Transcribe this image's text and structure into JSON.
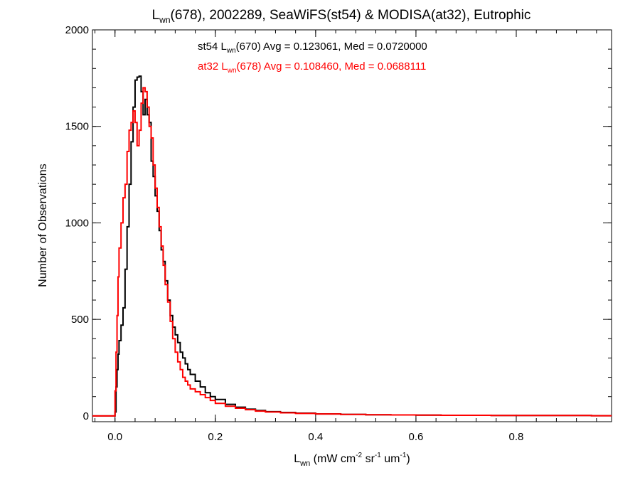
{
  "chart_data": {
    "type": "line",
    "title": {
      "pre": "L",
      "sub": "wn",
      "post": "(678), 2002289, SeaWiFS(st54) & MODISA(at32), Eutrophic"
    },
    "ylabel": "Number of Observations",
    "xlabel": {
      "p1": "L",
      "p1_sub": "wn",
      "p2": " (mW cm",
      "p2_sup": "-2",
      "p3": " sr",
      "p3_sup": "-1",
      "p4": " um",
      "p4_sup": "-1",
      "p5": ")"
    },
    "xlim": [
      -0.045,
      0.99
    ],
    "ylim": [
      -30,
      2000
    ],
    "x_ticks": [
      0.0,
      0.2,
      0.4,
      0.6,
      0.8
    ],
    "x_tick_labels": [
      "0.0",
      "0.2",
      "0.4",
      "0.6",
      "0.8"
    ],
    "y_ticks": [
      0,
      500,
      1000,
      1500,
      2000
    ],
    "y_tick_labels": [
      "0",
      "500",
      "1000",
      "1500",
      "2000"
    ],
    "x_minor_step": 0.04,
    "y_minor_step": 100,
    "grid": false,
    "legend": [
      {
        "color": "#000000",
        "pre": "st54 L",
        "sub": "wn",
        "post": "(670) Avg = 0.123061, Med = 0.0720000"
      },
      {
        "color": "#ff0000",
        "pre": "at32 L",
        "sub": "wn",
        "post": "(678) Avg = 0.108460, Med = 0.0688111"
      }
    ],
    "series": [
      {
        "color": "#000000",
        "step": true,
        "x": [
          -0.05,
          0.0,
          0.002,
          0.004,
          0.006,
          0.008,
          0.012,
          0.016,
          0.02,
          0.024,
          0.028,
          0.032,
          0.036,
          0.04,
          0.044,
          0.048,
          0.052,
          0.056,
          0.06,
          0.064,
          0.068,
          0.072,
          0.076,
          0.08,
          0.084,
          0.088,
          0.092,
          0.096,
          0.1,
          0.105,
          0.11,
          0.115,
          0.12,
          0.125,
          0.13,
          0.135,
          0.14,
          0.145,
          0.15,
          0.16,
          0.17,
          0.18,
          0.19,
          0.2,
          0.22,
          0.24,
          0.26,
          0.28,
          0.3,
          0.33,
          0.36,
          0.4,
          0.45,
          0.5,
          0.55,
          0.6,
          0.65,
          0.7,
          0.75,
          0.8,
          0.85,
          0.9,
          0.95,
          0.99
        ],
        "y": [
          0,
          20,
          150,
          240,
          320,
          390,
          470,
          560,
          760,
          980,
          1200,
          1420,
          1600,
          1740,
          1755,
          1760,
          1680,
          1560,
          1640,
          1560,
          1520,
          1320,
          1240,
          1140,
          1060,
          960,
          860,
          800,
          700,
          600,
          520,
          460,
          420,
          380,
          330,
          300,
          270,
          240,
          215,
          180,
          150,
          120,
          100,
          85,
          60,
          45,
          35,
          28,
          22,
          18,
          14,
          10,
          8,
          6,
          5,
          4,
          3,
          3,
          2,
          2,
          2,
          2,
          1,
          1
        ]
      },
      {
        "color": "#ff0000",
        "step": true,
        "x": [
          -0.05,
          0.0,
          0.002,
          0.004,
          0.006,
          0.008,
          0.012,
          0.016,
          0.02,
          0.024,
          0.028,
          0.032,
          0.036,
          0.04,
          0.044,
          0.048,
          0.052,
          0.056,
          0.06,
          0.064,
          0.068,
          0.072,
          0.076,
          0.08,
          0.084,
          0.088,
          0.092,
          0.096,
          0.1,
          0.105,
          0.11,
          0.115,
          0.12,
          0.125,
          0.13,
          0.135,
          0.14,
          0.145,
          0.15,
          0.16,
          0.17,
          0.18,
          0.19,
          0.2,
          0.22,
          0.24,
          0.26,
          0.28,
          0.3,
          0.33,
          0.36,
          0.4,
          0.45,
          0.5,
          0.55,
          0.6,
          0.65,
          0.7,
          0.75,
          0.8,
          0.85,
          0.9,
          0.95,
          0.99
        ],
        "y": [
          0,
          130,
          330,
          520,
          720,
          870,
          1000,
          1130,
          1200,
          1370,
          1480,
          1520,
          1580,
          1520,
          1400,
          1480,
          1620,
          1700,
          1680,
          1600,
          1500,
          1440,
          1300,
          1180,
          1080,
          980,
          880,
          780,
          680,
          590,
          490,
          400,
          330,
          280,
          240,
          200,
          180,
          160,
          140,
          125,
          110,
          95,
          80,
          65,
          50,
          40,
          32,
          25,
          20,
          16,
          13,
          10,
          8,
          6,
          5,
          4,
          3,
          3,
          2,
          2,
          2,
          2,
          1,
          1
        ]
      }
    ]
  }
}
